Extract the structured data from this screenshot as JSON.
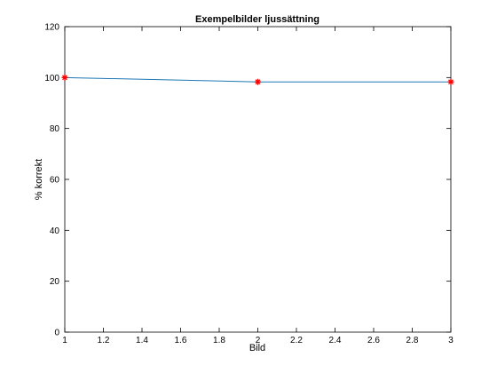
{
  "chart_data": {
    "type": "line",
    "title": "Exempelbilder ljussättning",
    "xlabel": "Bild",
    "ylabel": "% korrekt",
    "xlim": [
      1,
      3
    ],
    "ylim": [
      0,
      120
    ],
    "xticks": [
      1,
      1.2,
      1.4,
      1.6,
      1.8,
      2,
      2.2,
      2.4,
      2.6,
      2.8,
      3
    ],
    "xtick_labels": [
      "1",
      "1.2",
      "1.4",
      "1.6",
      "1.8",
      "2",
      "2.2",
      "2.4",
      "2.6",
      "2.8",
      "3"
    ],
    "yticks": [
      0,
      20,
      40,
      60,
      80,
      100,
      120
    ],
    "ytick_labels": [
      "0",
      "20",
      "40",
      "60",
      "80",
      "100",
      "120"
    ],
    "grid": false,
    "series": [
      {
        "name": "% korrekt",
        "x": [
          1,
          2,
          3
        ],
        "values": [
          100,
          98.3,
          98.3
        ],
        "line_color": "#1f77b4",
        "marker": "*",
        "marker_color": "#ff0000"
      }
    ]
  }
}
